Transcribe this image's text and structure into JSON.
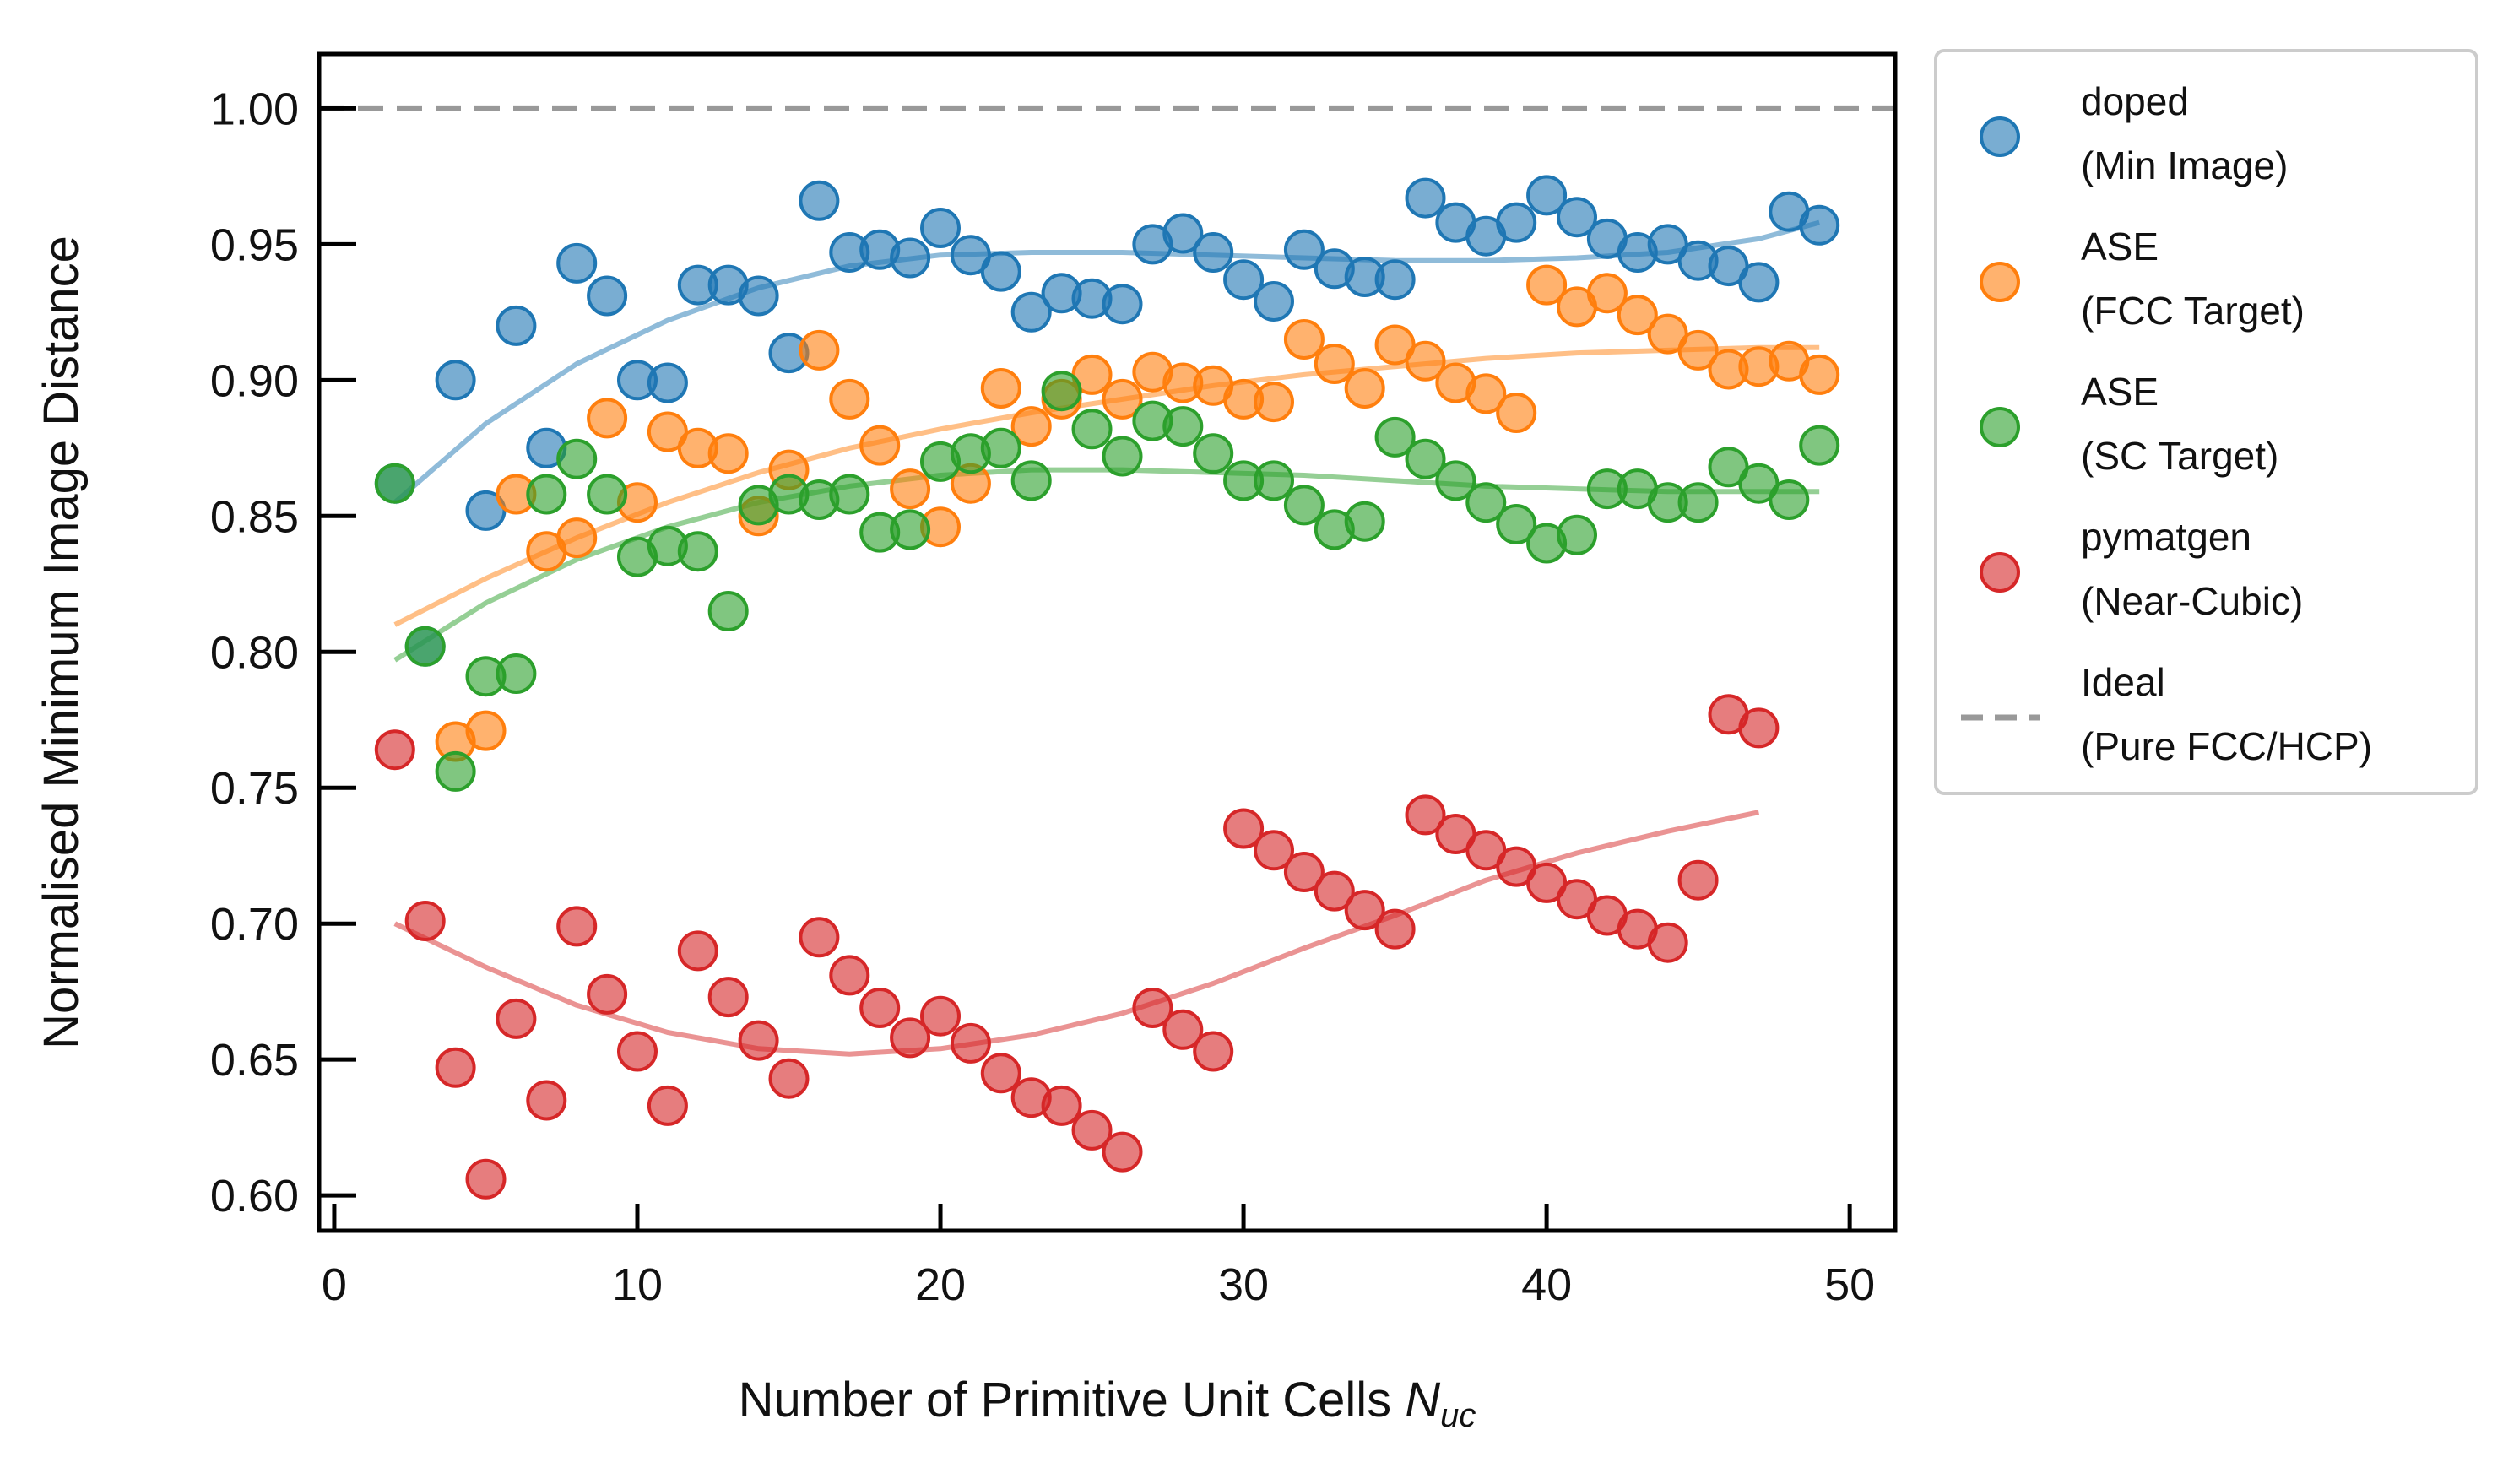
{
  "chart_data": {
    "type": "scatter",
    "title": "",
    "xlabel": "Number of Primitive Unit Cells ",
    "xlabel_symbol": "N",
    "xlabel_sub": "uc",
    "ylabel": "Normalised Minimum Image Distance",
    "xlim": [
      -0.5,
      51.5
    ],
    "ylim": [
      0.587,
      1.02
    ],
    "xticks": [
      0,
      10,
      20,
      30,
      40,
      50
    ],
    "xtick_labels": [
      "0",
      "10",
      "20",
      "30",
      "40",
      "50"
    ],
    "yticks": [
      0.6,
      0.65,
      0.7,
      0.75,
      0.8,
      0.85,
      0.9,
      0.95,
      1.0
    ],
    "ytick_labels": [
      "0.60",
      "0.65",
      "0.70",
      "0.75",
      "0.80",
      "0.85",
      "0.90",
      "0.95",
      "1.00"
    ],
    "grid": false,
    "legend_position": "outside-right",
    "series": [
      {
        "name": "doped",
        "name_line2": "(Min Image)",
        "color": "#1f77b4",
        "x": [
          2,
          3,
          4,
          5,
          6,
          7,
          8,
          9,
          10,
          11,
          12,
          13,
          14,
          15,
          16,
          17,
          18,
          19,
          20,
          21,
          22,
          23,
          24,
          25,
          26,
          27,
          28,
          29,
          30,
          31,
          32,
          33,
          34,
          35,
          36,
          37,
          38,
          39,
          40,
          41,
          42,
          43,
          44,
          45,
          46,
          47,
          48,
          49
        ],
        "y": [
          0.862,
          0.802,
          0.9,
          0.852,
          0.92,
          0.875,
          0.943,
          0.931,
          0.9,
          0.899,
          0.935,
          0.935,
          0.931,
          0.91,
          0.966,
          0.947,
          0.948,
          0.945,
          0.956,
          0.946,
          0.94,
          0.925,
          0.932,
          0.93,
          0.928,
          0.95,
          0.954,
          0.947,
          0.937,
          0.929,
          0.948,
          0.941,
          0.938,
          0.937,
          0.967,
          0.958,
          0.953,
          0.958,
          0.968,
          0.96,
          0.952,
          0.947,
          0.95,
          0.944,
          0.942,
          0.936,
          0.962,
          0.957
        ],
        "fit_x": [
          2,
          5,
          8,
          11,
          14,
          17,
          20,
          23,
          26,
          29,
          32,
          35,
          38,
          41,
          44,
          47,
          49
        ],
        "fit_y": [
          0.855,
          0.884,
          0.906,
          0.922,
          0.934,
          0.942,
          0.946,
          0.947,
          0.947,
          0.946,
          0.945,
          0.944,
          0.944,
          0.945,
          0.947,
          0.952,
          0.958
        ]
      },
      {
        "name": "ASE",
        "name_line2": "(FCC Target)",
        "color": "#ff7f0e",
        "x": [
          4,
          5,
          6,
          7,
          8,
          9,
          10,
          11,
          12,
          13,
          14,
          15,
          16,
          17,
          18,
          19,
          20,
          21,
          22,
          23,
          24,
          25,
          26,
          27,
          28,
          29,
          30,
          31,
          32,
          33,
          34,
          35,
          36,
          37,
          38,
          39,
          40,
          41,
          42,
          43,
          44,
          45,
          46,
          47,
          48,
          49
        ],
        "y": [
          0.767,
          0.771,
          0.858,
          0.837,
          0.842,
          0.886,
          0.855,
          0.881,
          0.875,
          0.873,
          0.85,
          0.867,
          0.911,
          0.893,
          0.876,
          0.86,
          0.846,
          0.862,
          0.897,
          0.883,
          0.893,
          0.902,
          0.893,
          0.903,
          0.899,
          0.898,
          0.893,
          0.892,
          0.915,
          0.906,
          0.897,
          0.913,
          0.907,
          0.899,
          0.895,
          0.888,
          0.935,
          0.927,
          0.932,
          0.924,
          0.917,
          0.911,
          0.904,
          0.905,
          0.907,
          0.902
        ],
        "fit_x": [
          2,
          5,
          8,
          11,
          14,
          17,
          20,
          23,
          26,
          29,
          32,
          35,
          38,
          41,
          44,
          47,
          49
        ],
        "fit_y": [
          0.81,
          0.827,
          0.842,
          0.855,
          0.866,
          0.875,
          0.882,
          0.888,
          0.893,
          0.898,
          0.902,
          0.905,
          0.908,
          0.91,
          0.911,
          0.912,
          0.912
        ]
      },
      {
        "name": "ASE",
        "name_line2": "(SC Target)",
        "color": "#2ca02c",
        "x": [
          2,
          3,
          4,
          5,
          6,
          7,
          8,
          9,
          10,
          11,
          12,
          13,
          14,
          15,
          16,
          17,
          18,
          19,
          20,
          21,
          22,
          23,
          24,
          25,
          26,
          27,
          28,
          29,
          30,
          31,
          32,
          33,
          34,
          35,
          36,
          37,
          38,
          39,
          40,
          41,
          42,
          43,
          44,
          45,
          46,
          47,
          48,
          49
        ],
        "y": [
          0.862,
          0.802,
          0.756,
          0.791,
          0.792,
          0.858,
          0.871,
          0.858,
          0.835,
          0.839,
          0.837,
          0.815,
          0.854,
          0.858,
          0.856,
          0.858,
          0.844,
          0.845,
          0.87,
          0.873,
          0.875,
          0.863,
          0.896,
          0.882,
          0.872,
          0.885,
          0.883,
          0.873,
          0.863,
          0.863,
          0.854,
          0.845,
          0.848,
          0.879,
          0.871,
          0.863,
          0.855,
          0.847,
          0.84,
          0.843,
          0.86,
          0.86,
          0.855,
          0.855,
          0.868,
          0.862,
          0.856,
          0.876
        ],
        "fit_x": [
          2,
          5,
          8,
          11,
          14,
          17,
          20,
          23,
          26,
          29,
          32,
          35,
          38,
          41,
          44,
          47,
          49
        ],
        "fit_y": [
          0.797,
          0.818,
          0.834,
          0.846,
          0.855,
          0.861,
          0.865,
          0.867,
          0.867,
          0.866,
          0.865,
          0.863,
          0.861,
          0.86,
          0.859,
          0.859,
          0.859
        ]
      },
      {
        "name": "pymatgen",
        "name_line2": "(Near-Cubic)",
        "color": "#d62728",
        "x": [
          2,
          3,
          4,
          5,
          6,
          7,
          8,
          9,
          10,
          11,
          12,
          13,
          14,
          15,
          16,
          17,
          18,
          19,
          20,
          21,
          22,
          23,
          24,
          25,
          26,
          27,
          28,
          29,
          30,
          31,
          32,
          33,
          34,
          35,
          36,
          37,
          38,
          39,
          40,
          41,
          42,
          43,
          44,
          45,
          46,
          47
        ],
        "y": [
          0.764,
          0.701,
          0.647,
          0.606,
          0.665,
          0.635,
          0.699,
          0.674,
          0.653,
          0.633,
          0.69,
          0.673,
          0.657,
          0.643,
          0.695,
          0.681,
          0.669,
          0.658,
          0.666,
          0.656,
          0.645,
          0.636,
          0.633,
          0.624,
          0.616,
          0.669,
          0.661,
          0.653,
          0.735,
          0.727,
          0.719,
          0.712,
          0.705,
          0.698,
          0.74,
          0.733,
          0.727,
          0.721,
          0.715,
          0.709,
          0.703,
          0.698,
          0.693,
          0.716,
          0.777,
          0.772
        ],
        "fit_x": [
          2,
          5,
          8,
          11,
          14,
          17,
          20,
          23,
          26,
          29,
          32,
          35,
          38,
          41,
          44,
          47
        ],
        "fit_y": [
          0.7,
          0.684,
          0.67,
          0.66,
          0.654,
          0.652,
          0.654,
          0.659,
          0.667,
          0.678,
          0.691,
          0.703,
          0.716,
          0.726,
          0.734,
          0.741
        ]
      }
    ],
    "reference_line": {
      "name": "Ideal",
      "name_line2": "(Pure FCC/HCP)",
      "y": 1.0,
      "color": "#999999",
      "style": "dashed"
    }
  }
}
